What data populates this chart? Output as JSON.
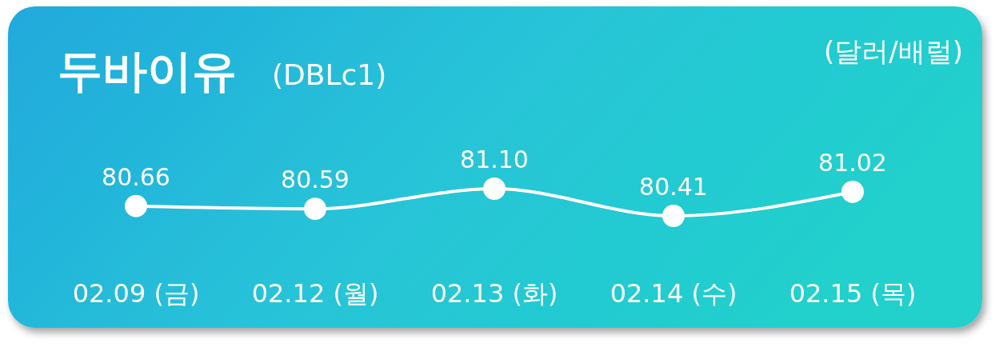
{
  "chart_data": {
    "type": "line",
    "title": "두바이유",
    "subtitle": "(DBLc1)",
    "ylabel": "(달러/배럴)",
    "categories": [
      "02.09 (금)",
      "02.12 (월)",
      "02.13 (화)",
      "02.14 (수)",
      "02.15 (목)"
    ],
    "series": [
      {
        "color": "#ffffff",
        "values": [
          80.66,
          80.59,
          81.1,
          80.41,
          81.02
        ],
        "value_labels": [
          "80.66",
          "80.59",
          "81.10",
          "80.41",
          "81.02"
        ]
      }
    ],
    "marker": "circle",
    "line_style": "solid"
  }
}
